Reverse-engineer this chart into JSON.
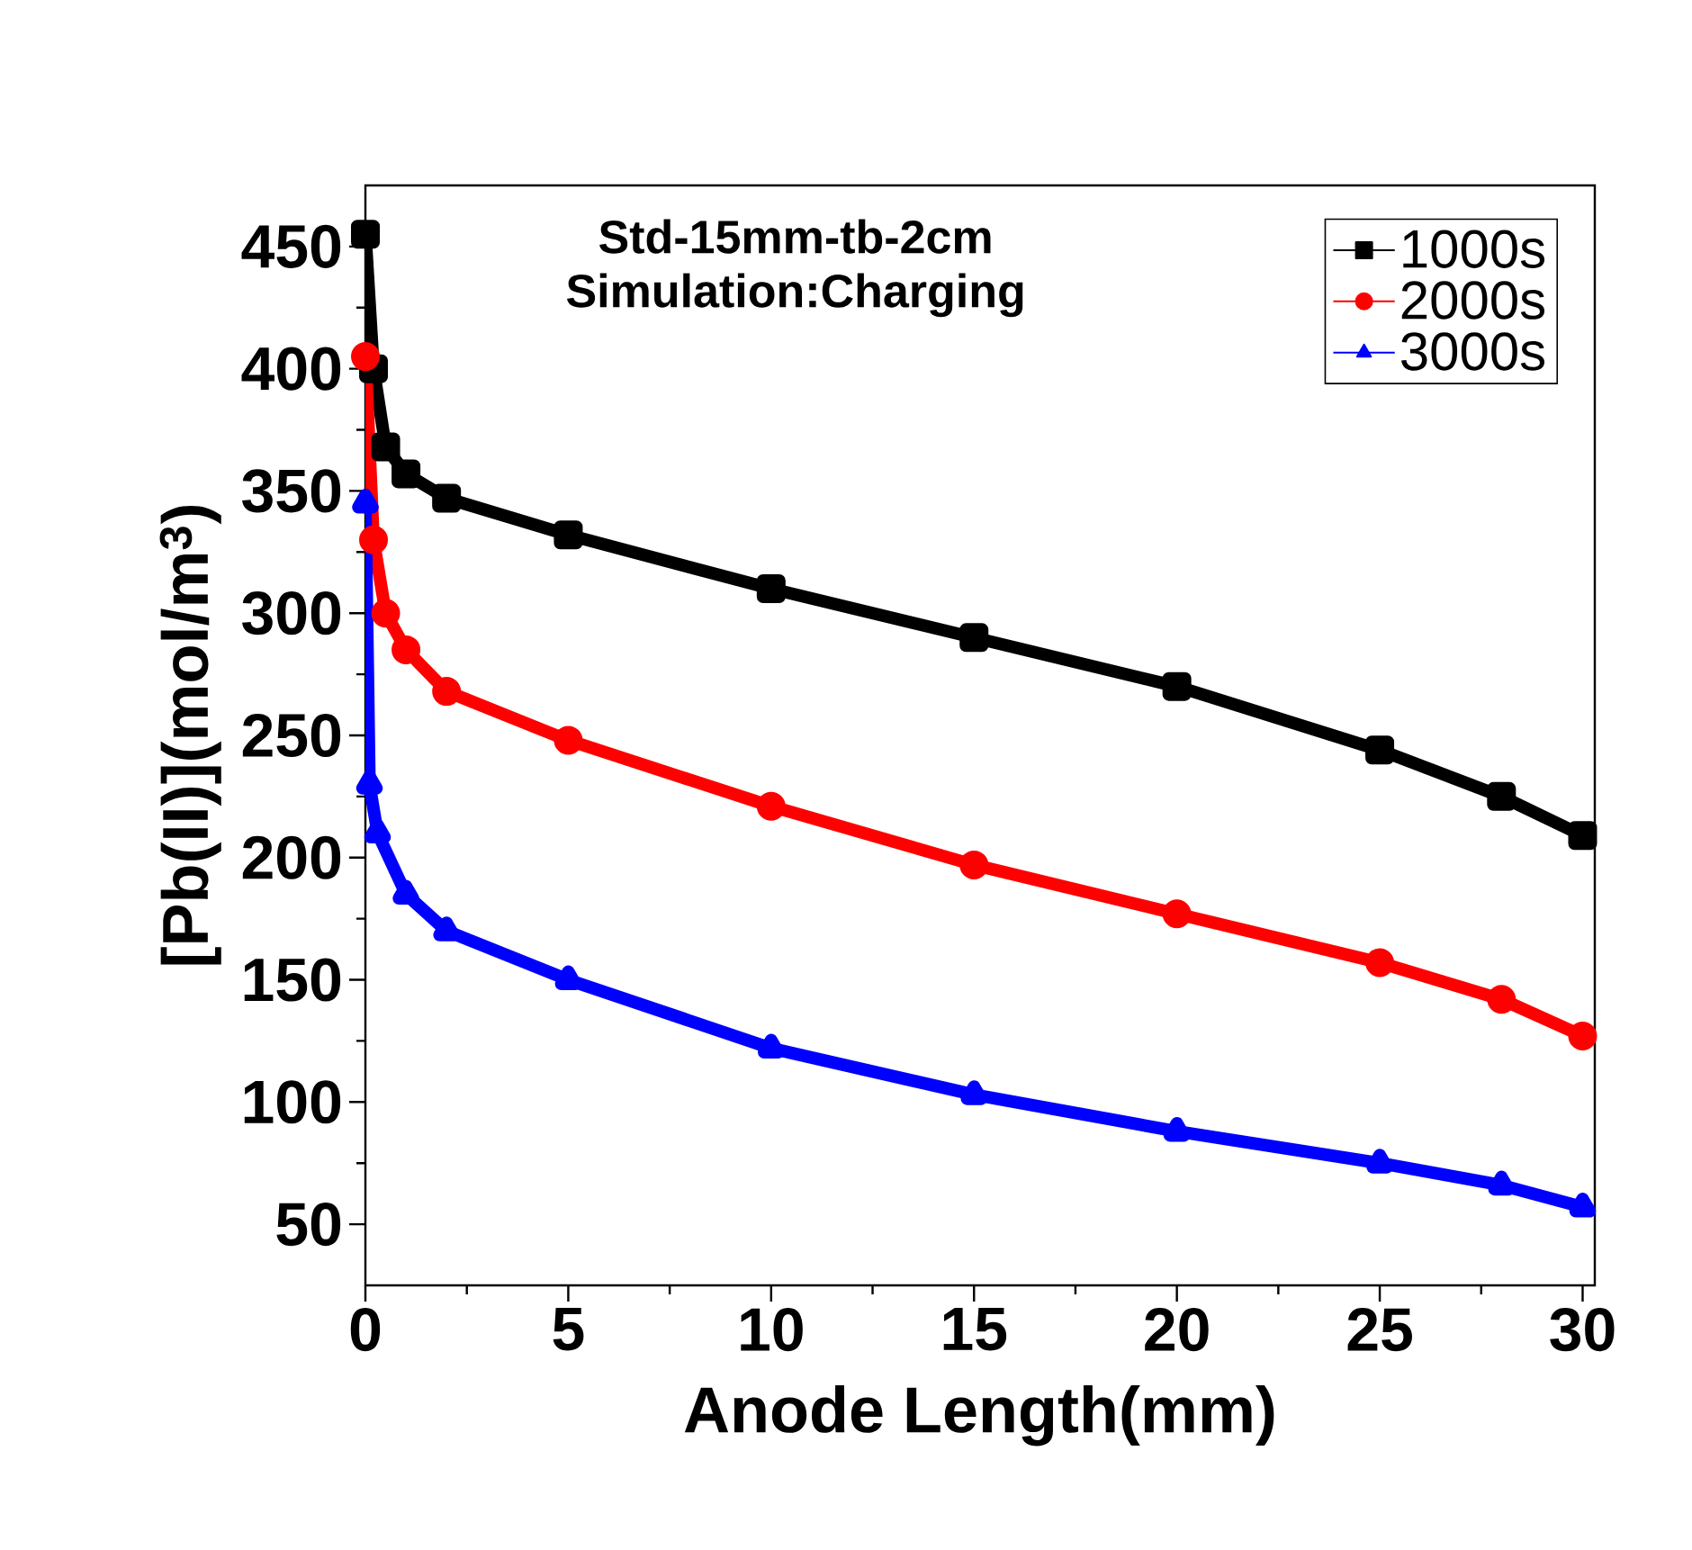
{
  "chart_data": {
    "type": "line",
    "title": "Std-15mm-tb-2cm",
    "subtitle": "Simulation:Charging",
    "xlabel": "Anode Length(mm)",
    "ylabel": "[Pb(II)](mol/m$^{3}$)",
    "xlim": [
      0,
      30.3
    ],
    "ylim": [
      25,
      475
    ],
    "xticks": [
      0,
      5,
      10,
      15,
      20,
      25,
      30
    ],
    "yticks": [
      50,
      100,
      150,
      200,
      250,
      300,
      350,
      400,
      450
    ],
    "legend": "top right",
    "grid": false,
    "line_style": "solid",
    "series": [
      {
        "name": "1000s",
        "color": "#000000",
        "marker": "square",
        "x": [
          0,
          0.2,
          0.5,
          1,
          2,
          5,
          10,
          15,
          20,
          25,
          28,
          30
        ],
        "values": [
          455,
          400,
          368,
          357,
          347,
          332,
          310,
          290,
          270,
          244,
          225,
          209
        ]
      },
      {
        "name": "2000s",
        "color": "#ff0000",
        "marker": "circle",
        "x": [
          0,
          0.2,
          0.5,
          1,
          2,
          5,
          10,
          15,
          20,
          25,
          28,
          30
        ],
        "values": [
          405,
          330,
          300,
          285,
          268,
          248,
          221,
          197,
          177,
          157,
          142,
          127
        ]
      },
      {
        "name": "3000s",
        "color": "#0000ff",
        "marker": "triangle",
        "x": [
          0,
          0.1,
          0.3,
          1,
          2,
          5,
          10,
          15,
          20,
          25,
          28,
          30
        ],
        "values": [
          345,
          230,
          210,
          185,
          170,
          150,
          122,
          103,
          88,
          75,
          66,
          57
        ]
      }
    ]
  }
}
